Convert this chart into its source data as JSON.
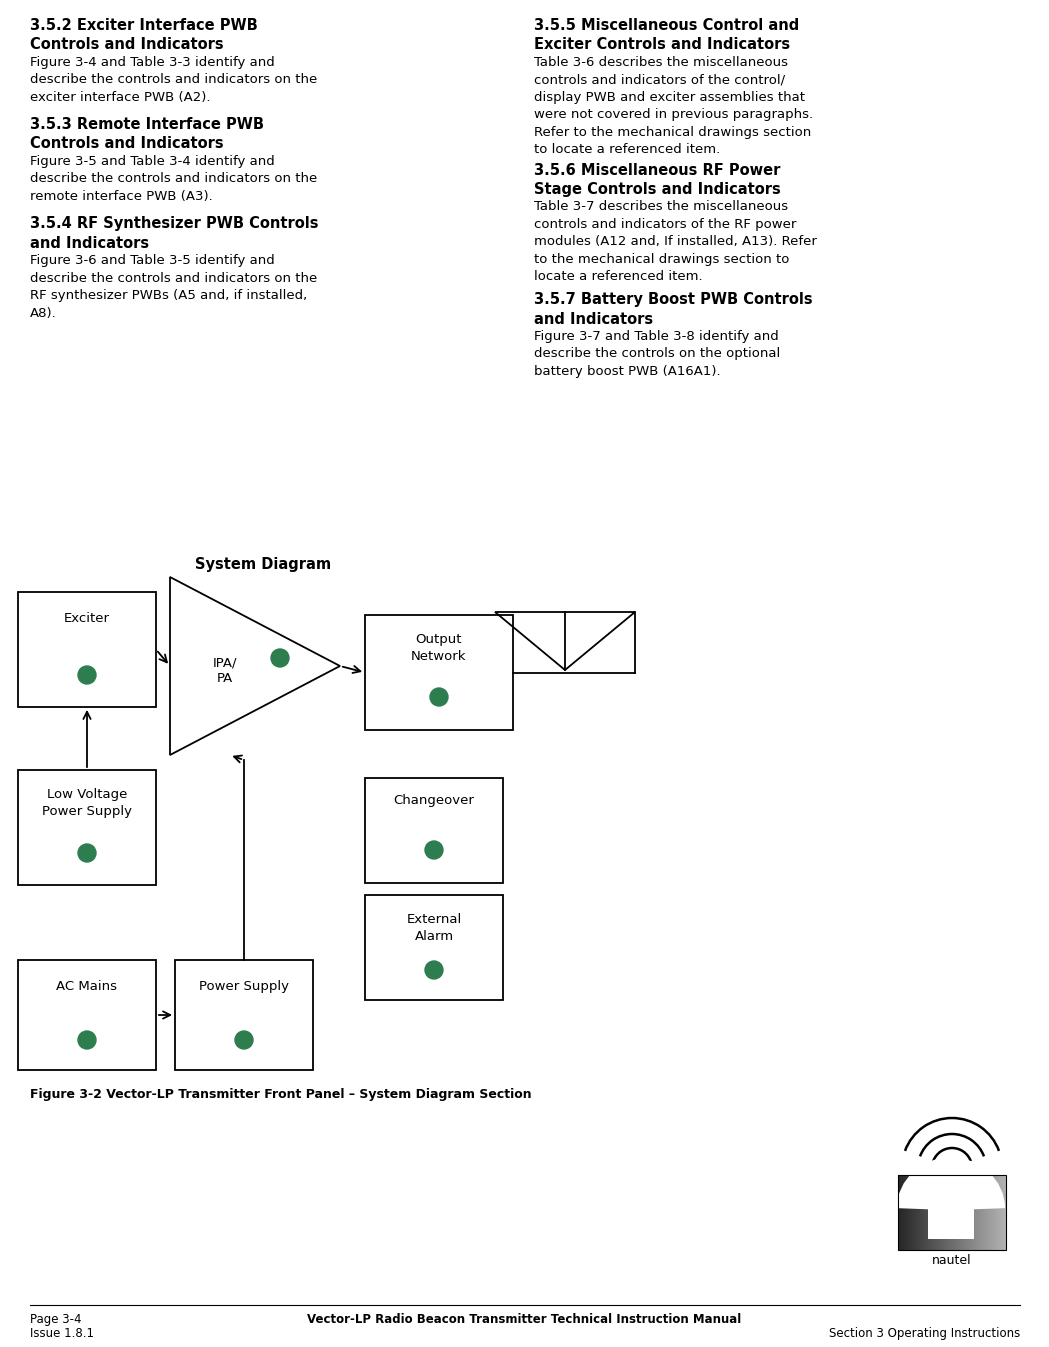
{
  "page_number": "Page 3-4",
  "issue": "Issue 1.8.1",
  "footer_center": "Vector-LP Radio Beacon Transmitter Technical Instruction Manual",
  "footer_right": "Section 3 Operating Instructions",
  "col1_sections": [
    {
      "heading": "3.5.2 Exciter Interface PWB\nControls and Indicators",
      "body": "Figure 3-4 and Table 3-3 identify and\ndescribe the controls and indicators on the\nexciter interface PWB (A2)."
    },
    {
      "heading": "3.5.3 Remote Interface PWB\nControls and Indicators",
      "body": "Figure 3-5 and Table 3-4 identify and\ndescribe the controls and indicators on the\nremote interface PWB (A3)."
    },
    {
      "heading": "3.5.4 RF Synthesizer PWB Controls\nand Indicators",
      "body": "Figure 3-6 and Table 3-5 identify and\ndescribe the controls and indicators on the\nRF synthesizer PWBs (A5 and, if installed,\nA8)."
    }
  ],
  "col2_sections": [
    {
      "heading": "3.5.5 Miscellaneous Control and\nExciter Controls and Indicators",
      "body": "Table 3-6 describes the miscellaneous\ncontrols and indicators of the control/\ndisplay PWB and exciter assemblies that\nwere not covered in previous paragraphs.\nRefer to the mechanical drawings section\nto locate a referenced item."
    },
    {
      "heading": "3.5.6 Miscellaneous RF Power\nStage Controls and Indicators",
      "body": "Table 3-7 describes the miscellaneous\ncontrols and indicators of the RF power\nmodules (A12 and, If installed, A13). Refer\nto the mechanical drawings section to\nlocate a referenced item."
    },
    {
      "heading": "3.5.7 Battery Boost PWB Controls\nand Indicators",
      "body": "Figure 3-7 and Table 3-8 identify and\ndescribe the controls on the optional\nbattery boost PWB (A16A1)."
    }
  ],
  "figure_caption": "Figure 3-2 Vector-LP Transmitter Front Panel – System Diagram Section",
  "diagram_title": "System Diagram",
  "dot_color": "#2e7d4f",
  "bg_color": "#ffffff",
  "text_color": "#000000"
}
